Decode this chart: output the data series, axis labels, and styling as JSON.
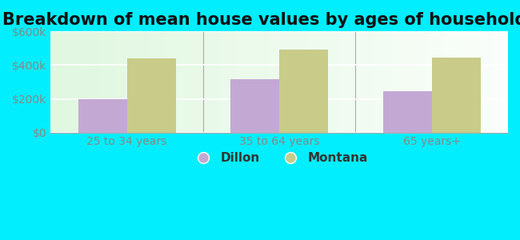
{
  "title": "Breakdown of mean house values by ages of householders",
  "categories": [
    "25 to 34 years",
    "35 to 64 years",
    "65 years+"
  ],
  "dillon_values": [
    200000,
    315000,
    245000
  ],
  "montana_values": [
    440000,
    490000,
    445000
  ],
  "ylim": [
    0,
    600000
  ],
  "yticks": [
    0,
    200000,
    400000,
    600000
  ],
  "ytick_labels": [
    "$0",
    "$200k",
    "$400k",
    "$600k"
  ],
  "bar_width": 0.32,
  "dillon_color": "#c4a8d4",
  "montana_color": "#c8cc88",
  "outer_background": "#00eeff",
  "legend_labels": [
    "Dillon",
    "Montana"
  ],
  "title_fontsize": 15,
  "tick_fontsize": 10,
  "legend_fontsize": 11,
  "tick_color": "#888888",
  "legend_text_color": "#333333"
}
